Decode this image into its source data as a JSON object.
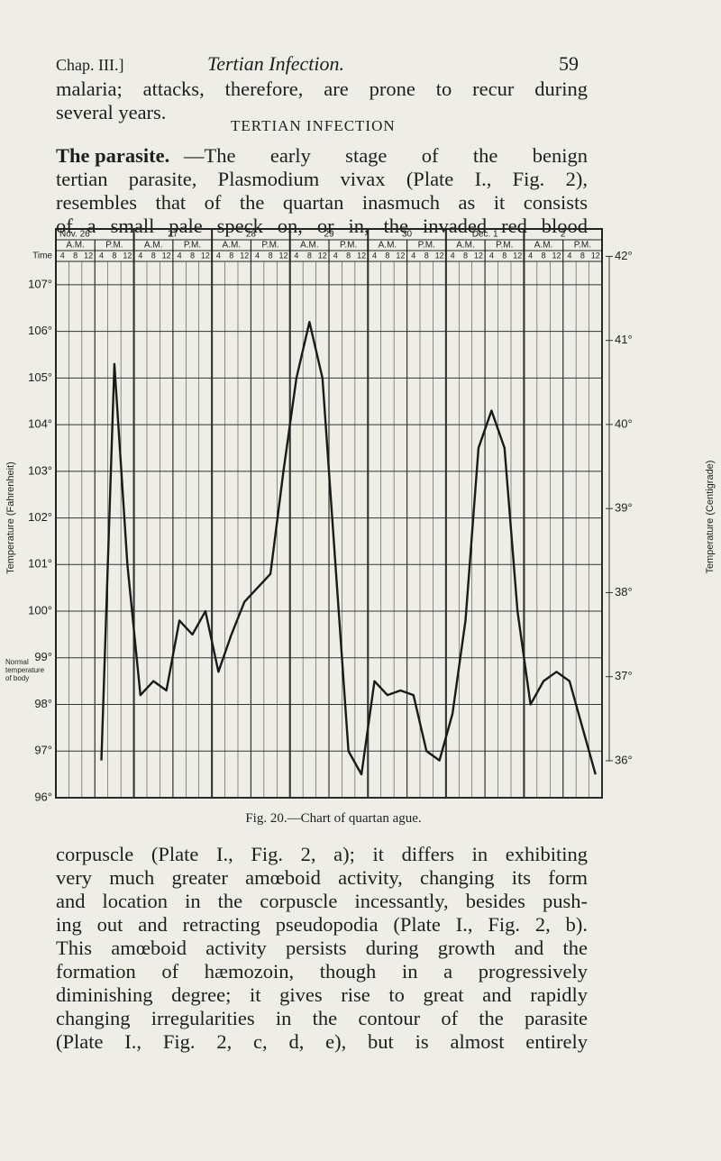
{
  "header": {
    "chapter": "Chap. III.]",
    "running_title": "Tertian Infection.",
    "page_number": "59"
  },
  "intro_lines": [
    "malaria; attacks, therefore, are prone to recur during",
    "several years."
  ],
  "section_heading": "TERTIAN INFECTION",
  "para2": {
    "lead": "The parasite.",
    "lines": [
      "—The early stage of the benign",
      "tertian parasite, Plasmodium vivax (Plate I., Fig. 2),",
      "resembles that of the quartan inasmuch as it consists",
      "of a small pale speck on, or in, the invaded red blood"
    ]
  },
  "chart_data": {
    "type": "line",
    "x_axis_label": "Time",
    "y_axis_label": "Temperature (Fahrenheit)",
    "y2_axis_label": "Temperature (Centigrade)",
    "annotation": [
      "Normal",
      "temperature",
      "of body"
    ],
    "days": [
      "Nov. 26",
      "27",
      "28",
      "29",
      "30",
      "Dec. 1",
      "2"
    ],
    "periods": [
      "A.M.",
      "P.M.",
      "A.M.",
      "P.M.",
      "A.M.",
      "P.M.",
      "A.M.",
      "P.M.",
      "A.M.",
      "P.M.",
      "A.M.",
      "P.M.",
      "A.M.",
      "P.M."
    ],
    "categories": [
      "4",
      "8",
      "12",
      "4",
      "8",
      "12",
      "4",
      "8",
      "12",
      "4",
      "8",
      "12",
      "4",
      "8",
      "12",
      "4",
      "8",
      "12",
      "4",
      "8",
      "12",
      "4",
      "8",
      "12",
      "4",
      "8",
      "12",
      "4",
      "8",
      "12",
      "4",
      "8",
      "12",
      "4",
      "8",
      "12",
      "4",
      "8",
      "12",
      "4",
      "8",
      "12"
    ],
    "series": [
      {
        "name": "Temperature",
        "color": "#1a1a1a",
        "values": [
          null,
          null,
          null,
          96.8,
          105.3,
          101,
          98.2,
          98.5,
          98.3,
          99.8,
          99.5,
          100,
          98.7,
          99.5,
          100.2,
          100.5,
          100.8,
          103,
          105,
          106.2,
          105,
          101,
          97,
          96.5,
          98.5,
          98.2,
          98.3,
          98.2,
          97,
          96.8,
          97.8,
          99.8,
          103.5,
          104.3,
          103.5,
          100,
          98,
          98.5,
          98.7,
          98.5,
          97.5,
          96.5
        ]
      }
    ],
    "ylim": [
      96,
      107.5
    ],
    "yticks": [
      {
        "value": 96,
        "label": "96°"
      },
      {
        "value": 97,
        "label": "97°"
      },
      {
        "value": 98,
        "label": "98°"
      },
      {
        "value": 99,
        "label": "99°"
      },
      {
        "value": 100,
        "label": "100°"
      },
      {
        "value": 101,
        "label": "101°"
      },
      {
        "value": 102,
        "label": "102°"
      },
      {
        "value": 103,
        "label": "103°"
      },
      {
        "value": 104,
        "label": "104°"
      },
      {
        "value": 105,
        "label": "105°"
      },
      {
        "value": 106,
        "label": "106°"
      },
      {
        "value": 107,
        "label": "107°"
      }
    ],
    "y2lim": [
      35.56,
      41.94
    ],
    "y2ticks": [
      {
        "value": 36,
        "label": "36°"
      },
      {
        "value": 37,
        "label": "37°"
      },
      {
        "value": 38,
        "label": "38°"
      },
      {
        "value": 39,
        "label": "39°"
      },
      {
        "value": 40,
        "label": "40°"
      },
      {
        "value": 41,
        "label": "41°"
      },
      {
        "value": 42,
        "label": "42°"
      }
    ],
    "grid": true
  },
  "caption": "Fig. 20.—Chart of quartan ague.",
  "body_lines": [
    "corpuscle (Plate I., Fig. 2, a); it differs in exhibiting",
    "very much greater amœboid activity, changing its form",
    "and location in the corpuscle incessantly, besides push-",
    "ing out and retracting pseudopodia (Plate I., Fig. 2, b).",
    "This amœboid activity persists during growth and the",
    "formation of hæmozoin, though in a progressively",
    "diminishing degree; it gives rise to great and rapidly",
    "changing irregularities in the contour of the parasite",
    "(Plate I., Fig. 2, c, d, e), but is almost entirely"
  ]
}
